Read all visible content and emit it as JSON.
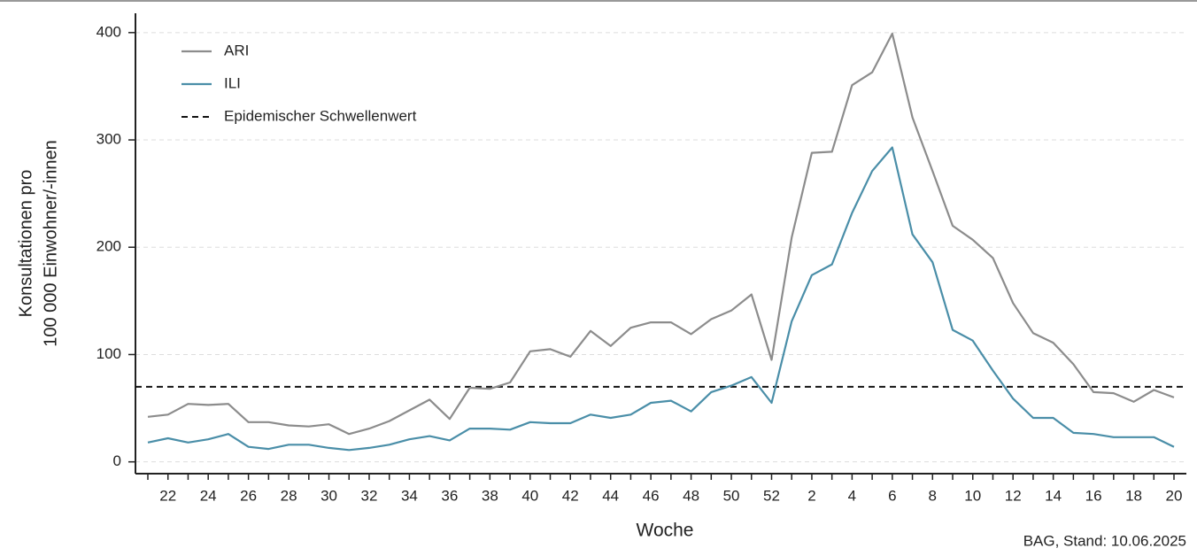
{
  "chart_data": {
    "type": "line",
    "x_label": "Woche",
    "y_label": [
      "Konsultationen pro",
      "100 000 Einwohner/-innen"
    ],
    "source": "BAG, Stand: 10.06.2025",
    "categories": [
      null,
      "22",
      null,
      "24",
      null,
      "26",
      null,
      "28",
      null,
      "30",
      null,
      "32",
      null,
      "34",
      null,
      "36",
      null,
      "38",
      null,
      "40",
      null,
      "42",
      null,
      "44",
      null,
      "46",
      null,
      "48",
      null,
      "50",
      null,
      "52",
      null,
      "2",
      null,
      "4",
      null,
      "6",
      null,
      "8",
      null,
      "10",
      null,
      "12",
      null,
      "14",
      null,
      "16",
      null,
      "18",
      null,
      "20"
    ],
    "series": [
      {
        "name": "ARI",
        "color": "#8c8c8c",
        "values": [
          42,
          44,
          54,
          53,
          54,
          37,
          37,
          34,
          33,
          35,
          26,
          31,
          38,
          48,
          58,
          40,
          69,
          68,
          74,
          103,
          105,
          98,
          122,
          108,
          125,
          130,
          130,
          119,
          133,
          141,
          156,
          95,
          209,
          288,
          289,
          351,
          363,
          399,
          321,
          271,
          220,
          207,
          190,
          148,
          120,
          111,
          91,
          65,
          64,
          56,
          67,
          60
        ]
      },
      {
        "name": "ILI",
        "color": "#4a8ea8",
        "values": [
          18,
          22,
          18,
          21,
          26,
          14,
          12,
          16,
          16,
          13,
          11,
          13,
          16,
          21,
          24,
          20,
          31,
          31,
          30,
          37,
          36,
          36,
          44,
          41,
          44,
          55,
          57,
          47,
          65,
          71,
          79,
          55,
          131,
          174,
          184,
          232,
          271,
          293,
          212,
          186,
          123,
          113,
          85,
          59,
          41,
          41,
          27,
          26,
          23,
          23,
          23,
          14
        ]
      }
    ],
    "threshold": {
      "name": "Epidemischer Schwellenwert",
      "value": 70,
      "color": "#111111"
    },
    "ylim": [
      -11,
      418
    ],
    "yticks": [
      0,
      100,
      200,
      300,
      400
    ],
    "grid": true
  }
}
